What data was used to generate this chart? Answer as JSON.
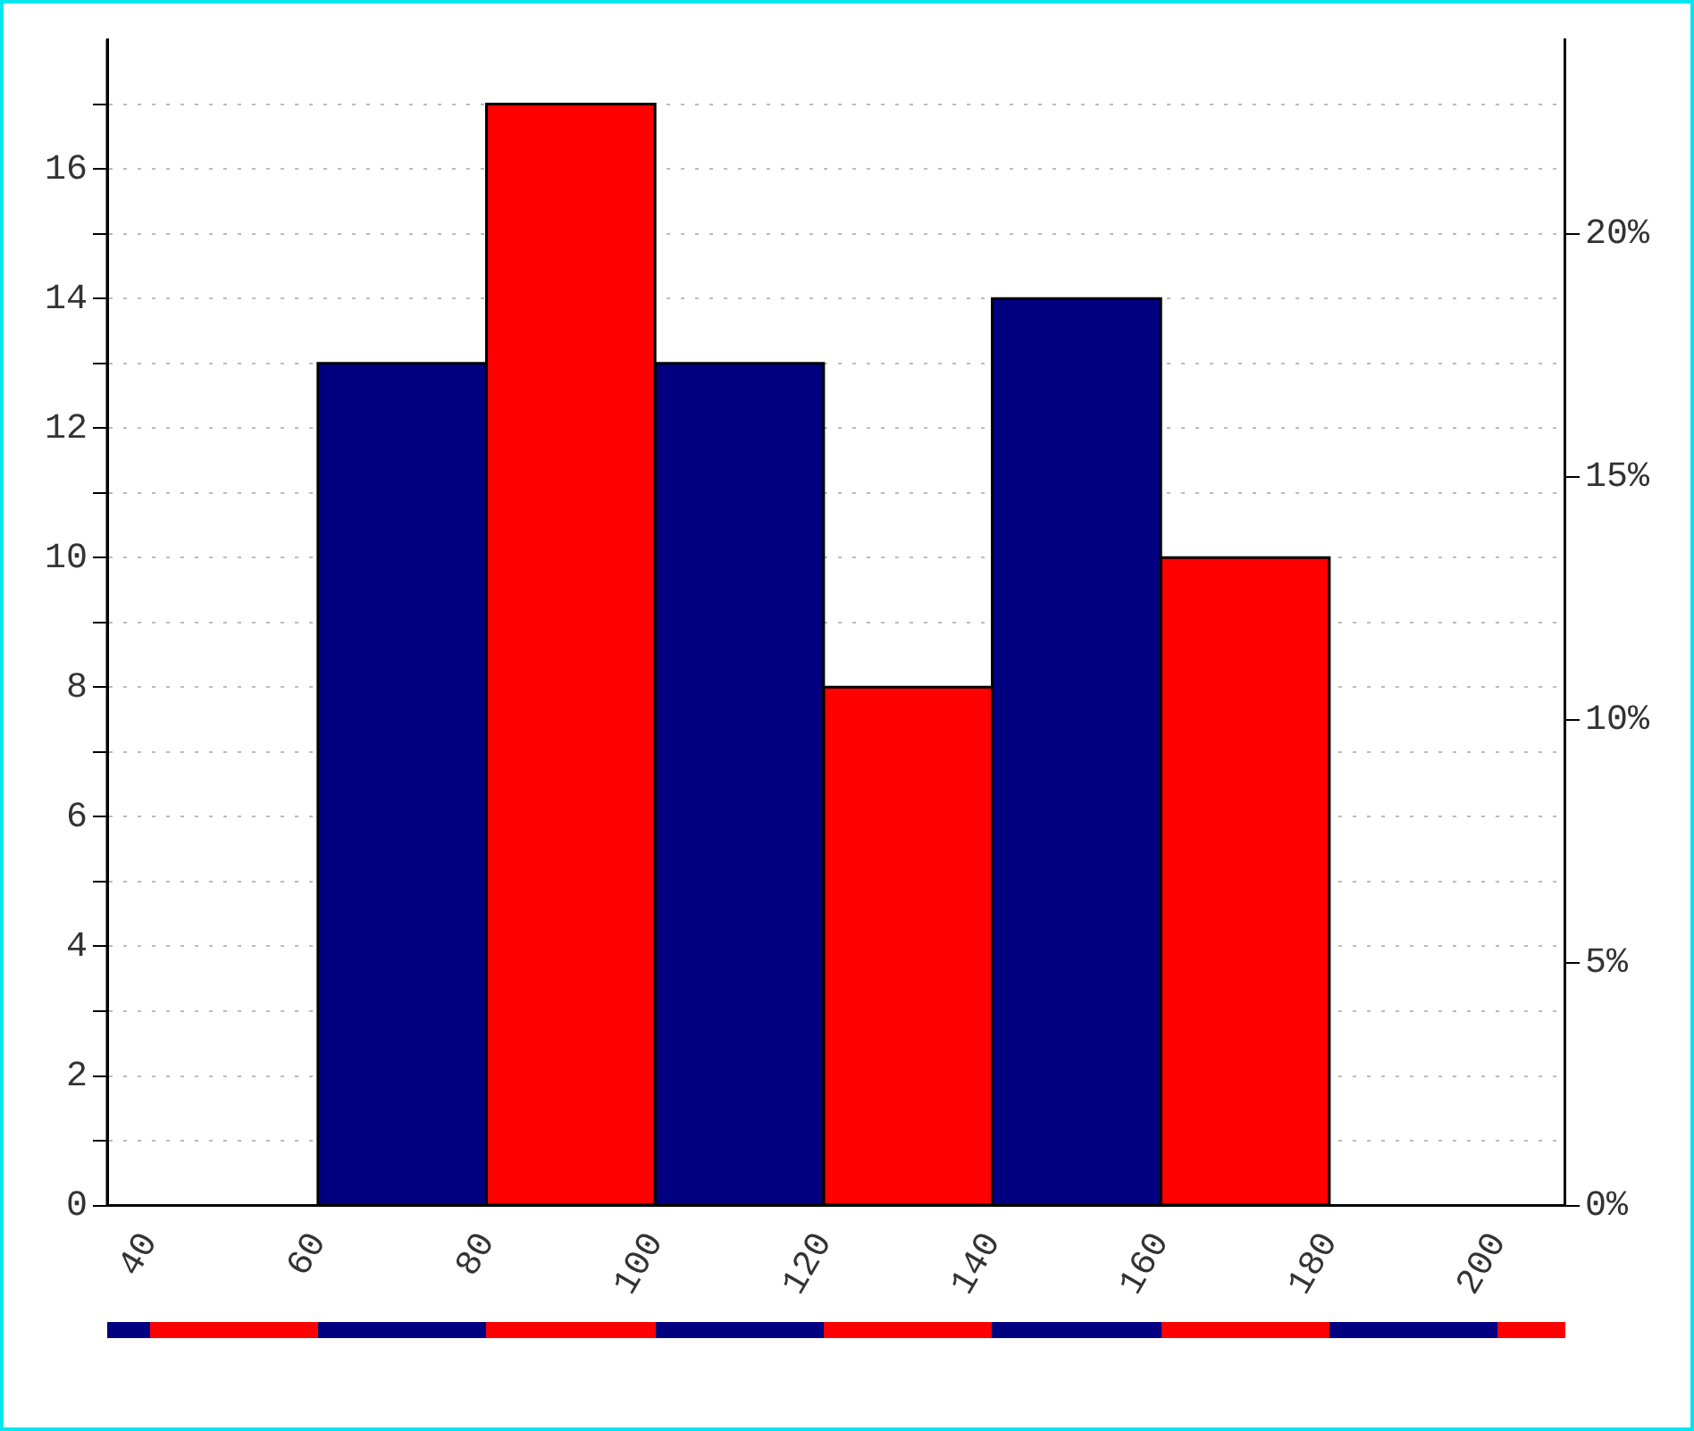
{
  "chart_data": {
    "type": "histogram",
    "bins": [
      60,
      80,
      100,
      120,
      140,
      160,
      180
    ],
    "values": [
      13,
      17,
      13,
      8,
      14,
      10
    ],
    "colors": [
      "#000080",
      "#ff0000",
      "#000080",
      "#ff0000",
      "#000080",
      "#ff0000"
    ],
    "xlim": [
      35,
      208
    ],
    "xticks": [
      40,
      60,
      80,
      100,
      120,
      140,
      160,
      180,
      200
    ],
    "ylim": [
      0,
      18
    ],
    "yticks": [
      0,
      {
        "value": 1,
        "label": null
      },
      2,
      {
        "value": 3,
        "label": null
      },
      4,
      {
        "value": 5,
        "label": null
      },
      6,
      {
        "value": 7,
        "label": null
      },
      8,
      {
        "value": 9,
        "label": null
      },
      10,
      {
        "value": 11,
        "label": null
      },
      12,
      {
        "value": 13,
        "label": null
      },
      14,
      {
        "value": 15,
        "label": null
      },
      16,
      {
        "value": 17,
        "label": null
      }
    ],
    "y2lim": [
      0,
      24
    ],
    "y2ticks": [
      {
        "value": 0,
        "label": "0%"
      },
      {
        "value": 5,
        "label": "5%"
      },
      {
        "value": 10,
        "label": "10%"
      },
      {
        "value": 15,
        "label": "15%"
      },
      {
        "value": 20,
        "label": "20%"
      }
    ],
    "grid": "y"
  }
}
